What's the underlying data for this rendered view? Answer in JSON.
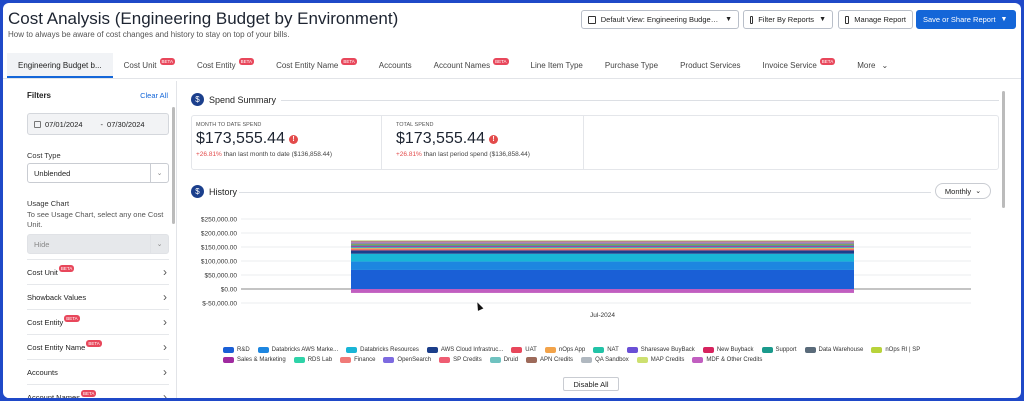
{
  "header": {
    "title": "Cost Analysis (Engineering Budget by Environment)",
    "subtitle": "How to always be aware of cost changes and history to stay on top of your bills.",
    "default_view_label": "Default View: Engineering Budget b...",
    "filter_reports_label": "Filter By Reports",
    "manage_report_label": "Manage Report",
    "save_share_label": "Save or Share Report"
  },
  "tabs": [
    {
      "label": "Engineering Budget b...",
      "badge": ""
    },
    {
      "label": "Cost Unit",
      "badge": "BETA"
    },
    {
      "label": "Cost Entity",
      "badge": "BETA"
    },
    {
      "label": "Cost Entity Name",
      "badge": "BETA"
    },
    {
      "label": "Accounts",
      "badge": ""
    },
    {
      "label": "Account Names",
      "badge": "BETA"
    },
    {
      "label": "Line Item Type",
      "badge": ""
    },
    {
      "label": "Purchase Type",
      "badge": ""
    },
    {
      "label": "Product Services",
      "badge": ""
    },
    {
      "label": "Invoice Service",
      "badge": "BETA"
    },
    {
      "label": "More",
      "badge": ""
    }
  ],
  "sidebar": {
    "filters_label": "Filters",
    "clear_all_label": "Clear All",
    "date_start": "07/01/2024",
    "date_end": "07/30/2024",
    "date_separator": "-",
    "cost_type_label": "Cost Type",
    "cost_type_value": "Unblended",
    "usage_chart_label": "Usage Chart",
    "usage_chart_hint": "To see Usage Chart, select any one Cost Unit.",
    "usage_chart_value": "Hide",
    "items": [
      {
        "label": "Cost Unit",
        "badge": "BETA"
      },
      {
        "label": "Showback Values",
        "badge": ""
      },
      {
        "label": "Cost Entity",
        "badge": "BETA"
      },
      {
        "label": "Cost Entity Name",
        "badge": "BETA"
      },
      {
        "label": "Accounts",
        "badge": ""
      },
      {
        "label": "Account Names",
        "badge": "BETA"
      }
    ]
  },
  "spend_summary": {
    "title": "Spend Summary",
    "mtd_label": "MONTH TO DATE SPEND",
    "mtd_value": "$173,555.44",
    "mtd_delta_pct": "+26.81%",
    "mtd_delta_text": "than last month to date ($136,858.44)",
    "total_label": "TOTAL SPEND",
    "total_value": "$173,555.44",
    "total_delta_pct": "+26.81%",
    "total_delta_text": "than last period spend ($136,858.44)"
  },
  "history": {
    "title": "History",
    "granularity": "Monthly",
    "disable_all_label": "Disable All"
  },
  "chart_data": {
    "type": "bar",
    "stacked": true,
    "categories": [
      "Jul-2024"
    ],
    "y_ticks": [
      "$250,000.00",
      "$200,000.00",
      "$150,000.00",
      "$100,000.00",
      "$50,000.00",
      "$0.00",
      "$-50,000.00"
    ],
    "ylim": [
      -50000,
      250000
    ],
    "grid": true,
    "legend_position": "bottom",
    "series": [
      {
        "name": "R&D",
        "color": "#1a5fd6",
        "values": [
          68000
        ]
      },
      {
        "name": "Databricks AWS Marke...",
        "color": "#1d86e0",
        "values": [
          30000
        ]
      },
      {
        "name": "Databricks Resources",
        "color": "#19b5d6",
        "values": [
          28000
        ]
      },
      {
        "name": "AWS Cloud Infrastruc...",
        "color": "#1b3e8a",
        "values": [
          12000
        ]
      },
      {
        "name": "UAT",
        "color": "#e8475b",
        "values": [
          4000
        ]
      },
      {
        "name": "nOps App",
        "color": "#f2a34a",
        "values": [
          4000
        ]
      },
      {
        "name": "NAT",
        "color": "#22c3a7",
        "values": [
          3000
        ]
      },
      {
        "name": "Sharesave BuyBack",
        "color": "#6a4fd6",
        "values": [
          3000
        ]
      },
      {
        "name": "New Buyback",
        "color": "#d6235e",
        "values": [
          2500
        ]
      },
      {
        "name": "Support",
        "color": "#1a9a8c",
        "values": [
          2500
        ]
      },
      {
        "name": "Data Warehouse",
        "color": "#5a6b7a",
        "values": [
          2000
        ]
      },
      {
        "name": "nOps RI | SP",
        "color": "#b8d33a",
        "values": [
          2000
        ]
      },
      {
        "name": "Sales  & Marketing",
        "color": "#a02aa0",
        "values": [
          2000
        ]
      },
      {
        "name": "RDS Lab",
        "color": "#2ed3a8",
        "values": [
          2000
        ]
      },
      {
        "name": "Finance",
        "color": "#f07a78",
        "values": [
          1500
        ]
      },
      {
        "name": "OpenSearch",
        "color": "#7d6ae0",
        "values": [
          1500
        ]
      },
      {
        "name": "SP Credits",
        "color": "#ef5d73",
        "values": [
          1500
        ]
      },
      {
        "name": "Druid",
        "color": "#6fc2c0",
        "values": [
          1500
        ]
      },
      {
        "name": "APN Credits",
        "color": "#9d6a5a",
        "values": [
          1000
        ]
      },
      {
        "name": "QA Sandbox",
        "color": "#b0b8c0",
        "values": [
          1000
        ]
      },
      {
        "name": "MAP Credits",
        "color": "#cde070",
        "values": [
          1000
        ]
      },
      {
        "name": "MDF & Other Credits",
        "color": "#c15ec0",
        "values": [
          -14000
        ]
      }
    ]
  }
}
